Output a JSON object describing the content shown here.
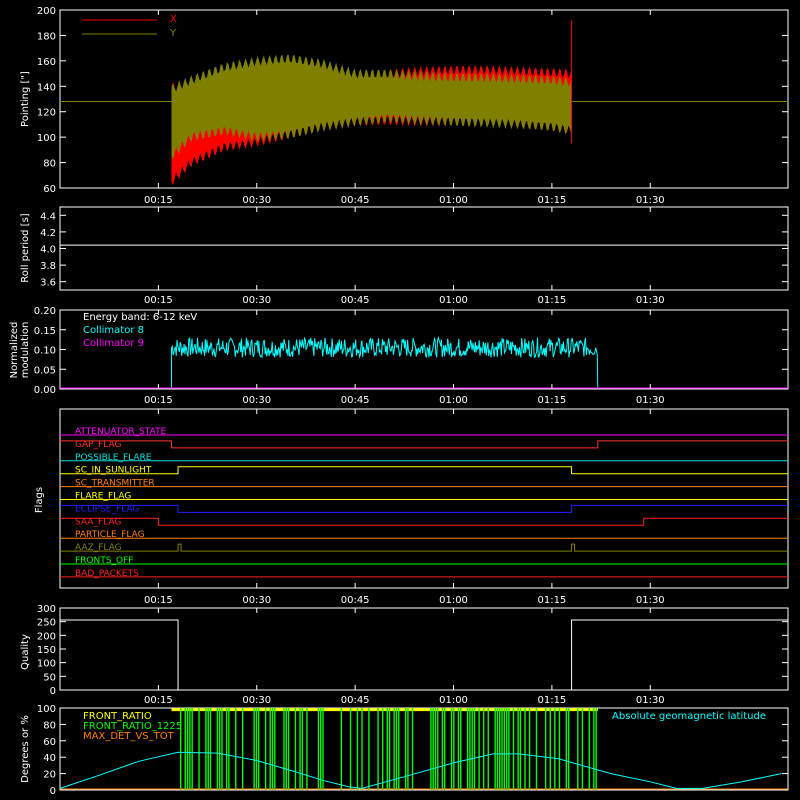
{
  "time_ticks": [
    "00:15",
    "00:30",
    "00:45",
    "01:00",
    "01:15",
    "01:30"
  ],
  "chart_data": [
    {
      "id": "pointing",
      "type": "line",
      "ylabel": "Pointing [\"]",
      "ylim": [
        60,
        200
      ],
      "yticks": [
        60,
        80,
        100,
        120,
        140,
        160,
        180,
        200
      ],
      "legend": [
        "X",
        "Y"
      ],
      "colors": {
        "X": "#ff0000",
        "Y": "#808000"
      },
      "baseline": 128,
      "active_start": "00:17",
      "active_end": "01:18",
      "envelope": {
        "time": [
          "00:17",
          "00:20",
          "00:25",
          "00:30",
          "00:35",
          "00:40",
          "00:45",
          "00:50",
          "00:55",
          "01:00",
          "01:05",
          "01:10",
          "01:15",
          "01:18"
        ],
        "X": {
          "min": [
            65,
            80,
            92,
            96,
            102,
            108,
            112,
            113,
            112,
            112,
            112,
            110,
            108,
            105
          ],
          "max": [
            140,
            133,
            138,
            143,
            145,
            145,
            146,
            150,
            152,
            153,
            153,
            152,
            151,
            150
          ]
        },
        "Y": {
          "min": [
            85,
            100,
            105,
            100,
            102,
            108,
            112,
            115,
            113,
            112,
            111,
            110,
            108,
            105
          ],
          "max": [
            138,
            145,
            155,
            160,
            162,
            158,
            150,
            150,
            148,
            147,
            147,
            146,
            145,
            143
          ]
        }
      }
    },
    {
      "id": "roll_period",
      "type": "line",
      "ylabel": "Roll period [s]",
      "ylim": [
        3.5,
        4.5
      ],
      "yticks": [
        3.6,
        3.8,
        4.0,
        4.2,
        4.4
      ],
      "value": 4.04,
      "color": "#ffffff"
    },
    {
      "id": "modulation",
      "type": "line",
      "ylabel": "Normalized modulation",
      "ylim": [
        0,
        0.2
      ],
      "yticks": [
        "0.00",
        "0.05",
        "0.10",
        "0.15",
        "0.20"
      ],
      "annotation": "Energy band: 6-12 keV",
      "series": [
        {
          "name": "Collimator 8",
          "color": "#00ffff",
          "start": "00:17",
          "end": "01:22",
          "mean": 0.1,
          "range": [
            0.08,
            0.13
          ]
        },
        {
          "name": "Collimator 9",
          "color": "#ff00ff",
          "value": 0
        }
      ]
    },
    {
      "id": "flags",
      "type": "line",
      "ylabel": "Flags",
      "flags": [
        {
          "name": "ATTENUATOR_STATE",
          "color": "#ff00ff",
          "transitions": []
        },
        {
          "name": "GAP_FLAG",
          "color": "#ff3030",
          "transitions": [
            {
              "t": "00:17",
              "v": 0
            },
            {
              "t": "01:22",
              "v": 1
            }
          ],
          "initial": 1
        },
        {
          "name": "POSSIBLE_FLARE",
          "color": "#00e0e0",
          "transitions": []
        },
        {
          "name": "SC_IN_SUNLIGHT",
          "color": "#ffff00",
          "transitions": [
            {
              "t": "00:18",
              "v": 1
            },
            {
              "t": "01:18",
              "v": 0
            }
          ],
          "initial": 0
        },
        {
          "name": "SC_TRANSMITTER",
          "color": "#ff8000",
          "transitions": []
        },
        {
          "name": "FLARE_FLAG",
          "color": "#ffff00",
          "transitions": []
        },
        {
          "name": "ECLIPSE_FLAG",
          "color": "#2020ff",
          "transitions": [
            {
              "t": "00:18",
              "v": 0
            },
            {
              "t": "01:18",
              "v": 1
            }
          ],
          "initial": 1
        },
        {
          "name": "SAA_FLAG",
          "color": "#ff2020",
          "transitions": [
            {
              "t": "00:15",
              "v": 0
            },
            {
              "t": "01:29",
              "v": 1
            }
          ],
          "initial": 1
        },
        {
          "name": "PARTICLE_FLAG",
          "color": "#ff8000",
          "transitions": []
        },
        {
          "name": "AAZ_FLAG",
          "color": "#808000",
          "spikes": [
            "00:18",
            "01:18"
          ]
        },
        {
          "name": "FRONTS_OFF",
          "color": "#00ff00",
          "transitions": []
        },
        {
          "name": "BAD_PACKETS",
          "color": "#ff2020",
          "transitions": []
        }
      ]
    },
    {
      "id": "quality",
      "type": "line",
      "ylabel": "Quality",
      "ylim": [
        0,
        300
      ],
      "yticks": [
        0,
        50,
        100,
        150,
        200,
        250,
        300
      ],
      "high": 256,
      "low": 0,
      "low_start": "00:18",
      "low_end": "01:18",
      "color": "#ffffff"
    },
    {
      "id": "ratios",
      "type": "line",
      "ylabel": "Degrees or %",
      "ylim": [
        0,
        100
      ],
      "yticks": [
        0,
        20,
        40,
        60,
        80,
        100
      ],
      "legend": [
        {
          "name": "FRONT_RATIO",
          "color": "#ffff00"
        },
        {
          "name": "FRONT_RATIO_1225",
          "color": "#00ff00"
        },
        {
          "name": "MAX_DET_VS_TOT",
          "color": "#ff8000"
        }
      ],
      "latitude_label": "Absolute geomagnetic latitude",
      "latitude_color": "#00ffff",
      "latitude": {
        "time": [
          "00:00",
          "00:06",
          "00:12",
          "00:18",
          "00:24",
          "00:30",
          "00:36",
          "00:40",
          "00:44",
          "00:46",
          "00:52",
          "01:00",
          "01:06",
          "01:10",
          "01:16",
          "01:24",
          "01:30",
          "01:34",
          "01:38",
          "01:44",
          "01:50"
        ],
        "value": [
          2,
          18,
          35,
          46,
          45,
          36,
          22,
          12,
          4,
          2,
          15,
          33,
          44,
          44,
          38,
          20,
          10,
          2,
          2,
          10,
          20
        ]
      },
      "spikes_range": [
        "00:17",
        "01:22"
      ]
    }
  ]
}
